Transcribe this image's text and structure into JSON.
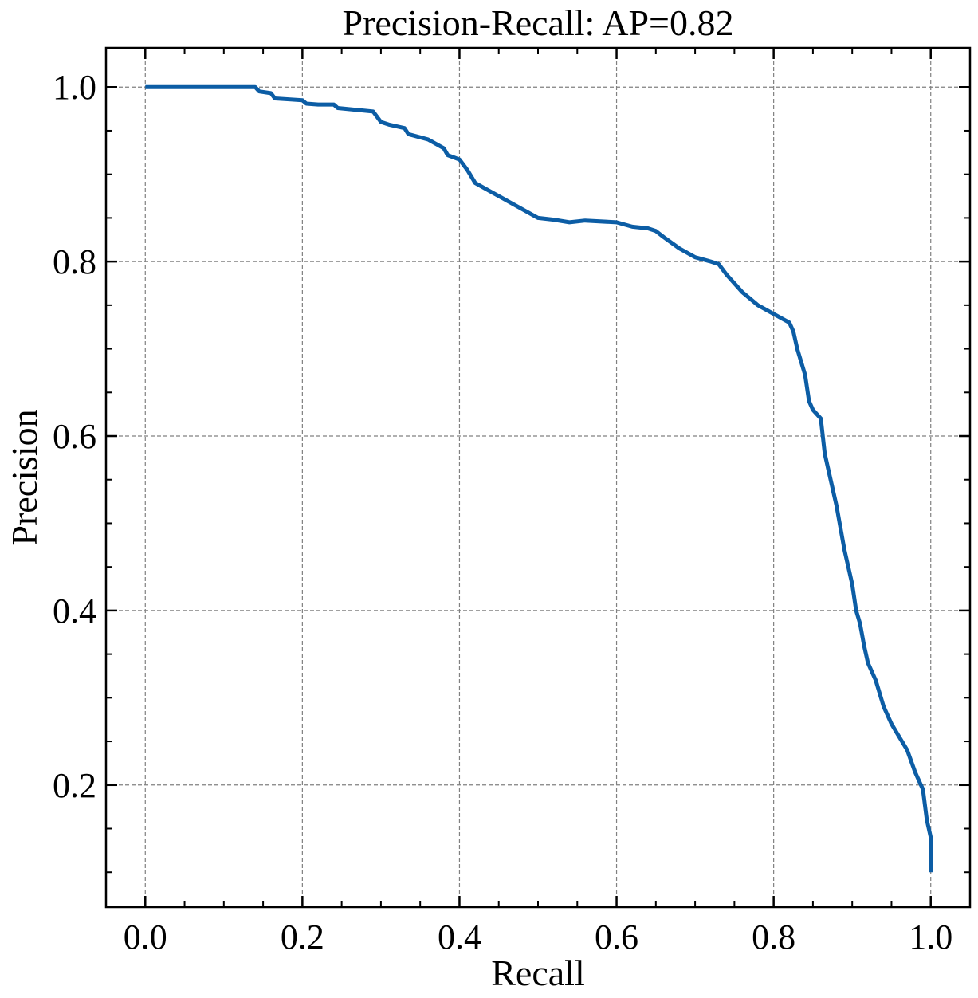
{
  "chart_data": {
    "type": "line",
    "title": "Precision-Recall: AP=0.82",
    "xlabel": "Recall",
    "ylabel": "Precision",
    "xlim": [
      -0.05,
      1.05
    ],
    "ylim": [
      0.06,
      1.045
    ],
    "xticks": [
      0.0,
      0.2,
      0.4,
      0.6,
      0.8,
      1.0
    ],
    "xtick_labels": [
      "0.0",
      "0.2",
      "0.4",
      "0.6",
      "0.8",
      "1.0"
    ],
    "yticks": [
      0.2,
      0.4,
      0.6,
      0.8,
      1.0
    ],
    "ytick_labels": [
      "0.2",
      "0.4",
      "0.6",
      "0.8",
      "1.0"
    ],
    "grid": true,
    "series": [
      {
        "color": "#0c5da5",
        "x": [
          0.0,
          0.14,
          0.145,
          0.16,
          0.165,
          0.2,
          0.205,
          0.22,
          0.24,
          0.245,
          0.29,
          0.3,
          0.31,
          0.33,
          0.335,
          0.36,
          0.38,
          0.385,
          0.4,
          0.41,
          0.42,
          0.44,
          0.46,
          0.49,
          0.5,
          0.52,
          0.54,
          0.56,
          0.6,
          0.62,
          0.64,
          0.65,
          0.66,
          0.68,
          0.7,
          0.72,
          0.73,
          0.74,
          0.76,
          0.78,
          0.8,
          0.82,
          0.825,
          0.83,
          0.84,
          0.845,
          0.85,
          0.86,
          0.865,
          0.87,
          0.88,
          0.89,
          0.9,
          0.905,
          0.91,
          0.915,
          0.92,
          0.93,
          0.94,
          0.95,
          0.96,
          0.97,
          0.98,
          0.99,
          0.995,
          1.0,
          1.0
        ],
        "y": [
          1.0,
          1.0,
          0.995,
          0.993,
          0.987,
          0.985,
          0.981,
          0.98,
          0.98,
          0.976,
          0.972,
          0.96,
          0.957,
          0.953,
          0.946,
          0.94,
          0.93,
          0.922,
          0.917,
          0.905,
          0.89,
          0.88,
          0.87,
          0.855,
          0.85,
          0.848,
          0.845,
          0.847,
          0.845,
          0.84,
          0.838,
          0.835,
          0.828,
          0.815,
          0.805,
          0.8,
          0.797,
          0.785,
          0.765,
          0.75,
          0.74,
          0.73,
          0.72,
          0.7,
          0.67,
          0.64,
          0.63,
          0.62,
          0.58,
          0.56,
          0.52,
          0.47,
          0.43,
          0.4,
          0.385,
          0.36,
          0.34,
          0.32,
          0.29,
          0.27,
          0.255,
          0.24,
          0.215,
          0.195,
          0.16,
          0.14,
          0.1
        ]
      }
    ]
  }
}
